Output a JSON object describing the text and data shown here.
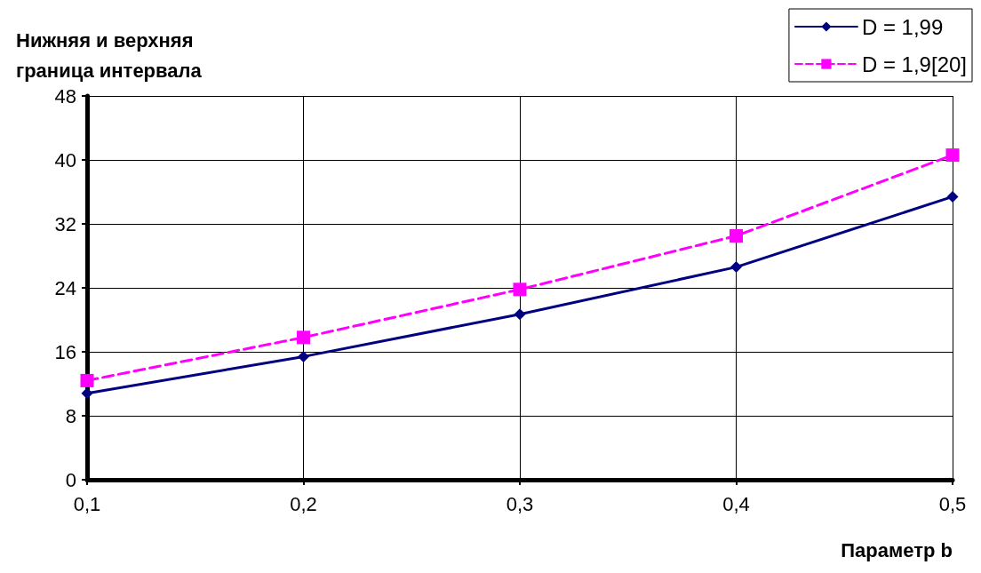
{
  "chart_data": {
    "type": "line",
    "xlabel": "Параметр b",
    "ylabel": "Нижняя и верхняя\nграница интервала",
    "x": [
      0.1,
      0.2,
      0.3,
      0.4,
      0.5
    ],
    "series": [
      {
        "name": "D = 1,99",
        "color": "#000080",
        "values": [
          10.8,
          15.4,
          20.7,
          26.6,
          35.4
        ],
        "marker": "diamond",
        "line_style": "solid"
      },
      {
        "name": "D = 1,9[20]",
        "color": "#ff00ff",
        "values": [
          12.4,
          17.8,
          23.8,
          30.5,
          40.6
        ],
        "marker": "square",
        "line_style": "dashed"
      }
    ],
    "xlim": [
      0.1,
      0.5
    ],
    "xticks": [
      {
        "value": 0.1,
        "label": "0,1"
      },
      {
        "value": 0.2,
        "label": "0,2"
      },
      {
        "value": 0.3,
        "label": "0,3"
      },
      {
        "value": 0.4,
        "label": "0,4"
      },
      {
        "value": 0.5,
        "label": "0,5"
      }
    ],
    "ylim": [
      0,
      48
    ],
    "yticks": [
      0,
      8,
      16,
      24,
      32,
      40,
      48
    ],
    "grid": true,
    "legend": "top right"
  }
}
